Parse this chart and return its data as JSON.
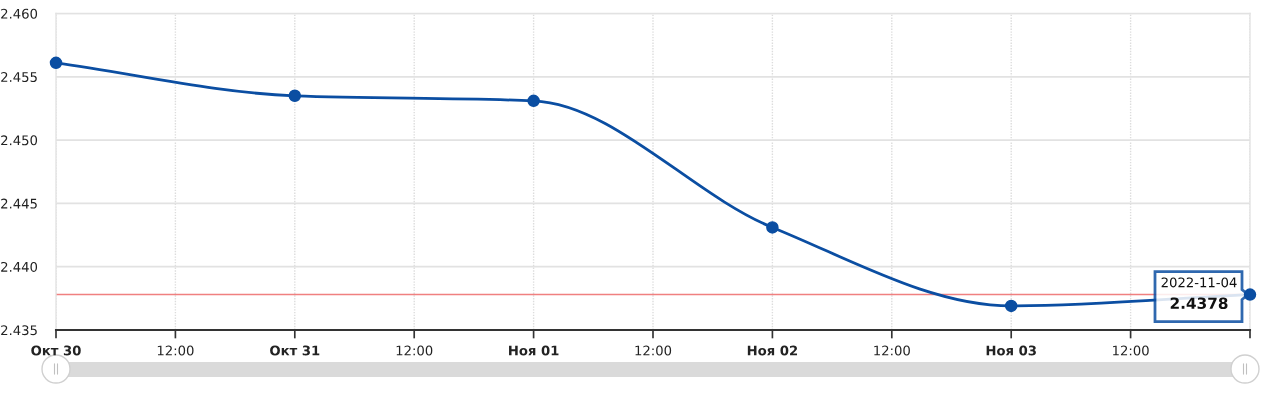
{
  "chart_data": {
    "type": "line",
    "x": [
      "2022-10-30",
      "2022-10-31",
      "2022-11-01",
      "2022-11-02",
      "2022-11-03",
      "2022-11-04"
    ],
    "series": [
      {
        "color": "#0b4ea2",
        "values": [
          2.4561,
          2.4535,
          2.4531,
          2.4431,
          2.4369,
          2.4378
        ]
      }
    ],
    "xlim": [
      "2022-10-30",
      "2022-11-04"
    ],
    "xticks": [
      {
        "value": "2022-10-30",
        "label": "Окт 30"
      },
      {
        "value": "2022-10-30T12:00",
        "label": "12:00"
      },
      {
        "value": "2022-10-31",
        "label": "Окт 31"
      },
      {
        "value": "2022-10-31T12:00",
        "label": "12:00"
      },
      {
        "value": "2022-11-01",
        "label": "Ноя 01"
      },
      {
        "value": "2022-11-01T12:00",
        "label": "12:00"
      },
      {
        "value": "2022-11-02",
        "label": "Ноя 02"
      },
      {
        "value": "2022-11-02T12:00",
        "label": "12:00"
      },
      {
        "value": "2022-11-03",
        "label": "Ноя 03"
      },
      {
        "value": "2022-11-03T12:00",
        "label": "12:00"
      },
      {
        "value": "2022-11-04",
        "label": null
      }
    ],
    "ylim": [
      2.435,
      2.46
    ],
    "yticks": [
      {
        "value": 2.435,
        "label": "2.435"
      },
      {
        "value": 2.44,
        "label": "2.440"
      },
      {
        "value": 2.445,
        "label": "2.445"
      },
      {
        "value": 2.45,
        "label": "2.450"
      },
      {
        "value": 2.455,
        "label": "2.455"
      },
      {
        "value": 2.46,
        "label": "2.460"
      }
    ],
    "grid": true,
    "marker": "circle",
    "line_style": "solid",
    "ref_lines": [
      {
        "axis": "y",
        "value": 2.4378,
        "color": "#f08080"
      }
    ],
    "annotations": [
      {
        "text": "2022-11-04",
        "x": "2022-11-04",
        "y": 2.4378
      },
      {
        "text": "2.4378",
        "x": "2022-11-04",
        "y": 2.4378
      }
    ]
  }
}
